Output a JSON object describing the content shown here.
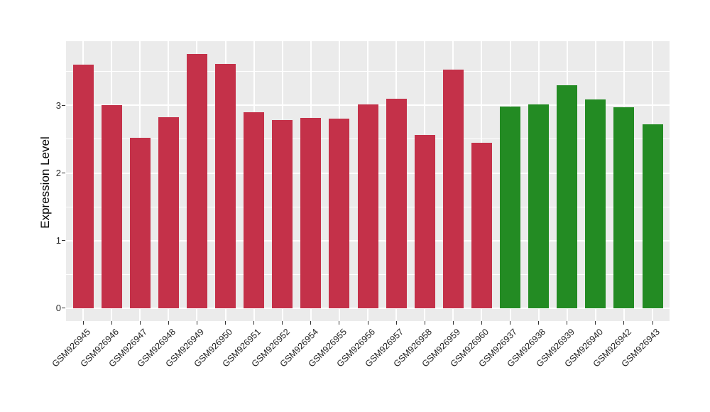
{
  "chart_data": {
    "type": "bar",
    "title": "",
    "xlabel": "",
    "ylabel": "Expression Level",
    "ylim": [
      -0.19,
      3.95
    ],
    "yticks": [
      0,
      1,
      2,
      3
    ],
    "minor_gridlines": [
      0.5,
      1.5,
      2.5,
      3.5
    ],
    "grid": "on",
    "legend": "none",
    "categories": [
      "GSM926945",
      "GSM926946",
      "GSM926947",
      "GSM926948",
      "GSM926949",
      "GSM926950",
      "GSM926951",
      "GSM926952",
      "GSM926954",
      "GSM926955",
      "GSM926956",
      "GSM926957",
      "GSM926958",
      "GSM926959",
      "GSM926960",
      "GSM926937",
      "GSM926938",
      "GSM926939",
      "GSM926940",
      "GSM926942",
      "GSM926943"
    ],
    "values": [
      3.6,
      3.0,
      2.52,
      2.83,
      3.76,
      3.61,
      2.9,
      2.78,
      2.82,
      2.8,
      3.01,
      3.1,
      2.56,
      3.53,
      2.45,
      2.98,
      3.02,
      3.3,
      3.09,
      2.97,
      2.72
    ],
    "bar_colors": [
      "#C43149",
      "#C43149",
      "#C43149",
      "#C43149",
      "#C43149",
      "#C43149",
      "#C43149",
      "#C43149",
      "#C43149",
      "#C43149",
      "#C43149",
      "#C43149",
      "#C43149",
      "#C43149",
      "#C43149",
      "#238B23",
      "#238B23",
      "#238B23",
      "#238B23",
      "#238B23",
      "#238B23"
    ]
  },
  "colors": {
    "red_group": "#C43149",
    "green_group": "#238B23",
    "panel_background": "#EBEBEB",
    "gridline": "#FFFFFF",
    "axis_text": "#1f1f1f"
  }
}
